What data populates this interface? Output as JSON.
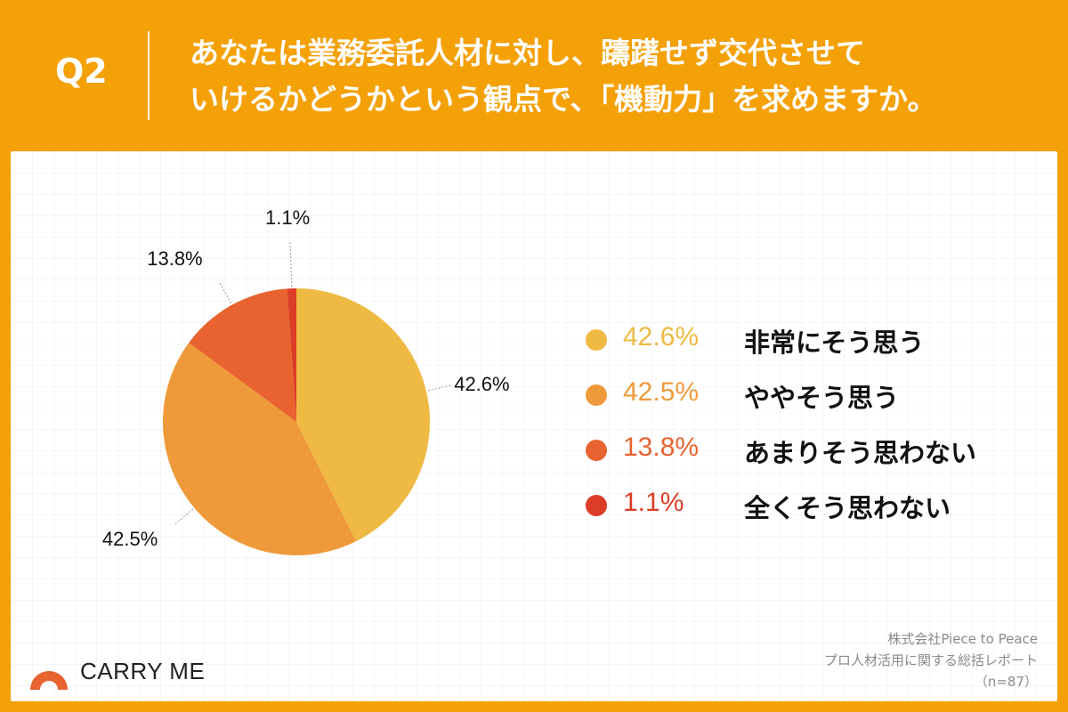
{
  "header": {
    "question_number": "Q2",
    "question_line1": "あなたは業務委託人材に対し、躊躇せず交代させて",
    "question_line2": "いけるかどうかという観点で、「機動力」を求めますか。"
  },
  "chart_data": {
    "type": "pie",
    "title": "あなたは業務委託人材に対し、躊躇せず交代させていけるかどうかという観点で、「機動力」を求めますか。",
    "categories": [
      "非常にそう思う",
      "ややそう思う",
      "あまりそう思わない",
      "全くそう思わない"
    ],
    "values": [
      42.6,
      42.5,
      13.8,
      1.1
    ],
    "value_labels": [
      "42.6%",
      "42.5%",
      "13.8%",
      "1.1%"
    ],
    "colors": [
      "#EEBA43",
      "#EE9A3A",
      "#E8632F",
      "#DC3D26"
    ],
    "start_angle_deg": 0,
    "direction": "clockwise",
    "legend_placement": "right"
  },
  "legend": [
    {
      "pct": "42.6%",
      "label": "非常にそう思う",
      "color": "#EEBA43"
    },
    {
      "pct": "42.5%",
      "label": "ややそう思う",
      "color": "#EE9A3A"
    },
    {
      "pct": "13.8%",
      "label": "あまりそう思わない",
      "color": "#E8632F"
    },
    {
      "pct": "1.1%",
      "label": "全くそう思わない",
      "color": "#DC3D26"
    }
  ],
  "brand": {
    "name": "CARRY ME",
    "logo_color": "#E8632F"
  },
  "source": {
    "line1": "株式会社Piece to Peace",
    "line2": "プロ人材活用に関する総括レポート",
    "line3": "（n=87）"
  },
  "theme": {
    "background": "#F4A007",
    "header_text": "#FFFFFF"
  }
}
